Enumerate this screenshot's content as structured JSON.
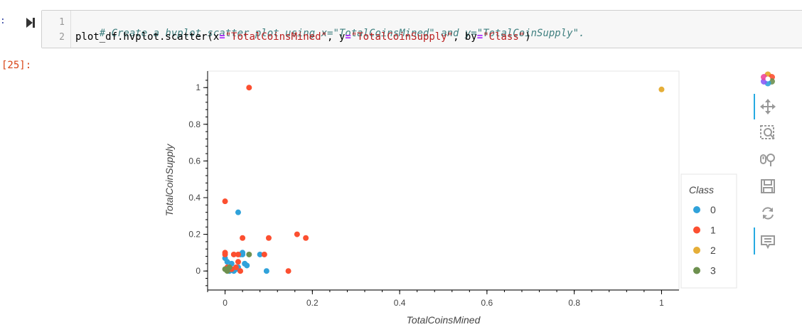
{
  "cell": {
    "input_prompt": ":",
    "code_lines": [
      {
        "number": "1",
        "comment": "# Create a hvplot.scatter plot using x=\"TotalCoinsMined\" and y=\"TotalCoinSupply\"."
      },
      {
        "number": "2",
        "prefix": "plot_df.hvplot.scatter(x",
        "eq1": "=",
        "s1": "\"TotalCoinsMined\"",
        "mid1": ", y",
        "eq2": "=",
        "s2": "\"TotalCoinSupply\"",
        "mid2": ", by",
        "eq3": "=",
        "s3": "\"Class\"",
        "suffix": ")"
      }
    ],
    "output_prompt": "[25]:"
  },
  "colors": {
    "class0": "#30a2da",
    "class1": "#fc4f30",
    "class2": "#e5ae38",
    "class3": "#6d904f"
  },
  "toolbar": {
    "icons": [
      "bokeh-logo-icon",
      "pan-icon",
      "box-zoom-icon",
      "wheel-zoom-icon",
      "save-icon",
      "reset-icon",
      "hover-icon"
    ]
  },
  "chart_data": {
    "type": "scatter",
    "title": "",
    "xlabel": "TotalCoinsMined",
    "ylabel": "TotalCoinSupply",
    "xlim": [
      -0.04,
      1.04
    ],
    "ylim": [
      -0.1,
      1.09
    ],
    "x_ticks": [
      "0",
      "0.2",
      "0.4",
      "0.6",
      "0.8",
      "1"
    ],
    "y_ticks": [
      "0",
      "0.2",
      "0.4",
      "0.6",
      "0.8",
      "1"
    ],
    "grid": false,
    "legend": {
      "title": "Class",
      "placement": "right"
    },
    "series": [
      {
        "name": "0",
        "points": [
          [
            0.0,
            0.07
          ],
          [
            0.005,
            0.05
          ],
          [
            0.01,
            0.02
          ],
          [
            0.015,
            0.04
          ],
          [
            0.02,
            0.0
          ],
          [
            0.025,
            0.01
          ],
          [
            0.03,
            0.32
          ],
          [
            0.035,
            0.09
          ],
          [
            0.04,
            0.1
          ],
          [
            0.045,
            0.04
          ],
          [
            0.05,
            0.03
          ],
          [
            0.08,
            0.09
          ],
          [
            0.095,
            0.0
          ],
          [
            0.01,
            0.0
          ],
          [
            0.03,
            0.02
          ],
          [
            0.04,
            0.09
          ]
        ]
      },
      {
        "name": "1",
        "points": [
          [
            0.0,
            0.38
          ],
          [
            0.0,
            0.1
          ],
          [
            0.0,
            0.09
          ],
          [
            0.005,
            0.02
          ],
          [
            0.01,
            0.01
          ],
          [
            0.02,
            0.09
          ],
          [
            0.025,
            0.02
          ],
          [
            0.03,
            0.05
          ],
          [
            0.03,
            0.09
          ],
          [
            0.035,
            0.0
          ],
          [
            0.04,
            0.18
          ],
          [
            0.055,
            1.0
          ],
          [
            0.09,
            0.09
          ],
          [
            0.1,
            0.18
          ],
          [
            0.145,
            0.0
          ],
          [
            0.165,
            0.2
          ],
          [
            0.185,
            0.18
          ],
          [
            0.015,
            0.01
          ]
        ]
      },
      {
        "name": "2",
        "points": [
          [
            1.0,
            0.99
          ]
        ]
      },
      {
        "name": "3",
        "points": [
          [
            0.0,
            0.01
          ],
          [
            0.005,
            0.0
          ],
          [
            0.01,
            0.02
          ],
          [
            0.055,
            0.09
          ]
        ]
      }
    ]
  }
}
